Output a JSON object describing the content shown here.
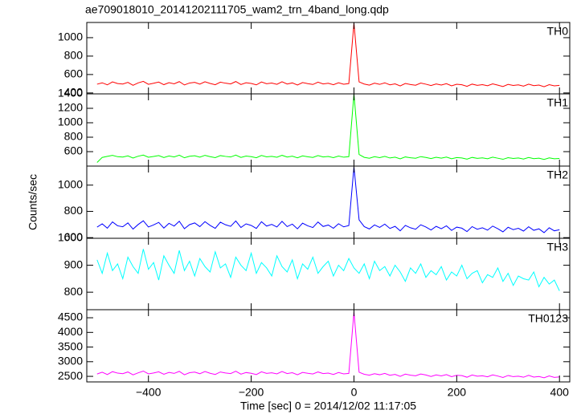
{
  "chart_data": [
    {
      "type": "line",
      "title": "ae709018010_20141202111705_wam2_trn_4band_long.qdp",
      "xlim": [
        -520,
        420
      ],
      "ylim": [
        390,
        1165
      ],
      "xticks": [
        {
          "value": -400,
          "label": "−400"
        },
        {
          "value": -200,
          "label": "−200"
        },
        0,
        200,
        400
      ],
      "yticks": [
        400,
        600,
        800,
        1000
      ],
      "x": [
        -500,
        -490,
        -480,
        -470,
        -460,
        -450,
        -440,
        -430,
        -420,
        -410,
        -400,
        -390,
        -380,
        -370,
        -360,
        -350,
        -340,
        -330,
        -320,
        -310,
        -300,
        -290,
        -280,
        -270,
        -260,
        -250,
        -240,
        -230,
        -220,
        -210,
        -200,
        -190,
        -180,
        -170,
        -160,
        -150,
        -140,
        -130,
        -120,
        -110,
        -100,
        -90,
        -80,
        -70,
        -60,
        -50,
        -40,
        -30,
        -20,
        -10,
        0,
        10,
        20,
        30,
        40,
        50,
        60,
        70,
        80,
        90,
        100,
        110,
        120,
        130,
        140,
        150,
        160,
        170,
        180,
        190,
        200,
        210,
        220,
        230,
        240,
        250,
        260,
        270,
        280,
        290,
        300,
        310,
        320,
        330,
        340,
        350,
        360,
        370,
        380,
        390,
        400
      ],
      "series": [
        {
          "name": "TH0",
          "color": "#ff0000",
          "values": [
            495,
            510,
            488,
            520,
            502,
            497,
            515,
            483,
            509,
            526,
            494,
            505,
            518,
            490,
            512,
            499,
            523,
            487,
            508,
            515,
            496,
            521,
            503,
            489,
            517,
            506,
            498,
            524,
            492,
            511,
            503,
            488,
            519,
            500,
            507,
            494,
            521,
            497,
            509,
            486,
            513,
            501,
            492,
            517,
            498,
            505,
            489,
            511,
            495,
            502,
            1160,
            520,
            497,
            485,
            506,
            493,
            510,
            488,
            499,
            476,
            503,
            491,
            484,
            507,
            495,
            480,
            498,
            486,
            501,
            477,
            494,
            489,
            472,
            496,
            483,
            490,
            478,
            499,
            485,
            470,
            493,
            481,
            488,
            474,
            495,
            479,
            486,
            468,
            490,
            477,
            482
          ]
        }
      ]
    },
    {
      "type": "line",
      "xlim": [
        -520,
        420
      ],
      "ylim": [
        400,
        1400
      ],
      "xticks": [
        {
          "value": -400,
          "label": "−400"
        },
        {
          "value": -200,
          "label": "−200"
        },
        0,
        200,
        400
      ],
      "yticks": [
        600,
        800,
        1000,
        1200,
        1400
      ],
      "x": [
        -500,
        -490,
        -480,
        -470,
        -460,
        -450,
        -440,
        -430,
        -420,
        -410,
        -400,
        -390,
        -380,
        -370,
        -360,
        -350,
        -340,
        -330,
        -320,
        -310,
        -300,
        -290,
        -280,
        -270,
        -260,
        -250,
        -240,
        -230,
        -220,
        -210,
        -200,
        -190,
        -180,
        -170,
        -160,
        -150,
        -140,
        -130,
        -120,
        -110,
        -100,
        -90,
        -80,
        -70,
        -60,
        -50,
        -40,
        -30,
        -20,
        -10,
        0,
        10,
        20,
        30,
        40,
        50,
        60,
        70,
        80,
        90,
        100,
        110,
        120,
        130,
        140,
        150,
        160,
        170,
        180,
        190,
        200,
        210,
        220,
        230,
        240,
        250,
        260,
        270,
        280,
        290,
        300,
        310,
        320,
        330,
        340,
        350,
        360,
        370,
        380,
        390,
        400
      ],
      "series": [
        {
          "name": "TH1",
          "color": "#00ff00",
          "values": [
            450,
            520,
            535,
            548,
            530,
            525,
            541,
            512,
            537,
            553,
            522,
            533,
            546,
            518,
            540,
            527,
            551,
            515,
            536,
            543,
            524,
            549,
            531,
            517,
            545,
            534,
            526,
            552,
            520,
            539,
            531,
            516,
            547,
            528,
            535,
            522,
            549,
            525,
            537,
            514,
            541,
            529,
            520,
            545,
            526,
            533,
            517,
            539,
            523,
            530,
            1400,
            560,
            521,
            509,
            530,
            517,
            534,
            512,
            523,
            500,
            527,
            515,
            508,
            531,
            519,
            504,
            522,
            510,
            525,
            501,
            518,
            513,
            496,
            520,
            507,
            514,
            502,
            523,
            509,
            494,
            517,
            505,
            512,
            498,
            519,
            503,
            510,
            492,
            514,
            501,
            506
          ]
        }
      ]
    },
    {
      "type": "line",
      "ylabel": "Counts/sec",
      "xlim": [
        -520,
        420
      ],
      "ylim": [
        595,
        1145
      ],
      "xticks": [
        {
          "value": -400,
          "label": "−400"
        },
        {
          "value": -200,
          "label": "−200"
        },
        0,
        200,
        400
      ],
      "yticks": [
        600,
        800,
        1000
      ],
      "x": [
        -500,
        -490,
        -480,
        -470,
        -460,
        -450,
        -440,
        -430,
        -420,
        -410,
        -400,
        -390,
        -380,
        -370,
        -360,
        -350,
        -340,
        -330,
        -320,
        -310,
        -300,
        -290,
        -280,
        -270,
        -260,
        -250,
        -240,
        -230,
        -220,
        -210,
        -200,
        -190,
        -180,
        -170,
        -160,
        -150,
        -140,
        -130,
        -120,
        -110,
        -100,
        -90,
        -80,
        -70,
        -60,
        -50,
        -40,
        -30,
        -20,
        -10,
        0,
        10,
        20,
        30,
        40,
        50,
        60,
        70,
        80,
        90,
        100,
        110,
        120,
        130,
        140,
        150,
        160,
        170,
        180,
        190,
        200,
        210,
        220,
        230,
        240,
        250,
        260,
        270,
        280,
        290,
        300,
        310,
        320,
        330,
        340,
        350,
        360,
        370,
        380,
        390,
        400
      ],
      "series": [
        {
          "name": "TH2",
          "color": "#0000ff",
          "values": [
            680,
            705,
            672,
            720,
            690,
            683,
            712,
            665,
            700,
            728,
            681,
            697,
            716,
            673,
            709,
            688,
            725,
            668,
            699,
            712,
            684,
            722,
            693,
            671,
            718,
            698,
            686,
            727,
            677,
            705,
            693,
            670,
            721,
            688,
            701,
            681,
            724,
            684,
            703,
            667,
            710,
            690,
            677,
            719,
            685,
            696,
            671,
            706,
            682,
            692,
            1140,
            735,
            684,
            666,
            697,
            678,
            703,
            670,
            686,
            652,
            693,
            675,
            664,
            698,
            681,
            658,
            686,
            668,
            690,
            655,
            680,
            672,
            646,
            684,
            664,
            675,
            657,
            688,
            668,
            644,
            679,
            661,
            671,
            650,
            683,
            656,
            667,
            638,
            675,
            652,
            660
          ]
        }
      ]
    },
    {
      "type": "line",
      "xlim": [
        -520,
        420
      ],
      "ylim": [
        735,
        1000
      ],
      "xticks": [
        {
          "value": -400,
          "label": "−400"
        },
        {
          "value": -200,
          "label": "−200"
        },
        0,
        200,
        400
      ],
      "yticks": [
        800,
        900,
        1000
      ],
      "x": [
        -500,
        -490,
        -480,
        -470,
        -460,
        -450,
        -440,
        -430,
        -420,
        -410,
        -400,
        -390,
        -380,
        -370,
        -360,
        -350,
        -340,
        -330,
        -320,
        -310,
        -300,
        -290,
        -280,
        -270,
        -260,
        -250,
        -240,
        -230,
        -220,
        -210,
        -200,
        -190,
        -180,
        -170,
        -160,
        -150,
        -140,
        -130,
        -120,
        -110,
        -100,
        -90,
        -80,
        -70,
        -60,
        -50,
        -40,
        -30,
        -20,
        -10,
        0,
        10,
        20,
        30,
        40,
        50,
        60,
        70,
        80,
        90,
        100,
        110,
        120,
        130,
        140,
        150,
        160,
        170,
        180,
        190,
        200,
        210,
        220,
        230,
        240,
        250,
        260,
        270,
        280,
        290,
        300,
        310,
        320,
        330,
        340,
        350,
        360,
        370,
        380,
        390,
        400
      ],
      "series": [
        {
          "name": "TH3",
          "color": "#00ffff",
          "values": [
            920,
            870,
            945,
            880,
            905,
            850,
            930,
            895,
            870,
            960,
            885,
            910,
            845,
            935,
            900,
            870,
            955,
            880,
            915,
            860,
            925,
            895,
            875,
            950,
            890,
            905,
            855,
            930,
            900,
            880,
            945,
            870,
            910,
            890,
            860,
            935,
            895,
            875,
            920,
            850,
            905,
            885,
            930,
            870,
            895,
            915,
            860,
            900,
            880,
            925,
            890,
            870,
            905,
            850,
            915,
            880,
            895,
            860,
            900,
            875,
            840,
            890,
            870,
            905,
            855,
            880,
            865,
            895,
            845,
            875,
            860,
            900,
            850,
            870,
            880,
            835,
            865,
            855,
            890,
            840,
            870,
            825,
            860,
            850,
            845,
            875,
            820,
            855,
            830,
            845,
            805
          ]
        }
      ]
    },
    {
      "type": "line",
      "xlabel": "Time [sec] 0 = 2014/12/02 11:17:05",
      "xlim": [
        -520,
        420
      ],
      "ylim": [
        2310,
        4775
      ],
      "xticks": [
        {
          "value": -400,
          "label": "−400"
        },
        {
          "value": -200,
          "label": "−200"
        },
        0,
        200,
        400
      ],
      "yticks": [
        2500,
        3000,
        3500,
        4000,
        4500
      ],
      "x": [
        -500,
        -490,
        -480,
        -470,
        -460,
        -450,
        -440,
        -430,
        -420,
        -410,
        -400,
        -390,
        -380,
        -370,
        -360,
        -350,
        -340,
        -330,
        -320,
        -310,
        -300,
        -290,
        -280,
        -270,
        -260,
        -250,
        -240,
        -230,
        -220,
        -210,
        -200,
        -190,
        -180,
        -170,
        -160,
        -150,
        -140,
        -130,
        -120,
        -110,
        -100,
        -90,
        -80,
        -70,
        -60,
        -50,
        -40,
        -30,
        -20,
        -10,
        0,
        10,
        20,
        30,
        40,
        50,
        60,
        70,
        80,
        90,
        100,
        110,
        120,
        130,
        140,
        150,
        160,
        170,
        180,
        190,
        200,
        210,
        220,
        230,
        240,
        250,
        260,
        270,
        280,
        290,
        300,
        310,
        320,
        330,
        340,
        350,
        360,
        370,
        380,
        390,
        400
      ],
      "series": [
        {
          "name": "TH0123",
          "color": "#ff00ff",
          "values": [
            2580,
            2640,
            2560,
            2660,
            2610,
            2590,
            2650,
            2550,
            2620,
            2680,
            2585,
            2615,
            2655,
            2570,
            2635,
            2600,
            2670,
            2555,
            2625,
            2645,
            2590,
            2665,
            2605,
            2565,
            2650,
            2615,
            2595,
            2675,
            2575,
            2630,
            2605,
            2560,
            2655,
            2600,
            2620,
            2585,
            2665,
            2595,
            2625,
            2555,
            2635,
            2605,
            2580,
            2650,
            2595,
            2610,
            2565,
            2630,
            2585,
            2600,
            4700,
            2640,
            2570,
            2540,
            2590,
            2555,
            2600,
            2535,
            2565,
            2500,
            2575,
            2540,
            2520,
            2580,
            2545,
            2495,
            2550,
            2515,
            2560,
            2490,
            2535,
            2525,
            2470,
            2545,
            2505,
            2520,
            2485,
            2550,
            2510,
            2460,
            2530,
            2490,
            2505,
            2470,
            2535,
            2475,
            2495,
            2450,
            2515,
            2465,
            2480
          ]
        }
      ]
    }
  ]
}
